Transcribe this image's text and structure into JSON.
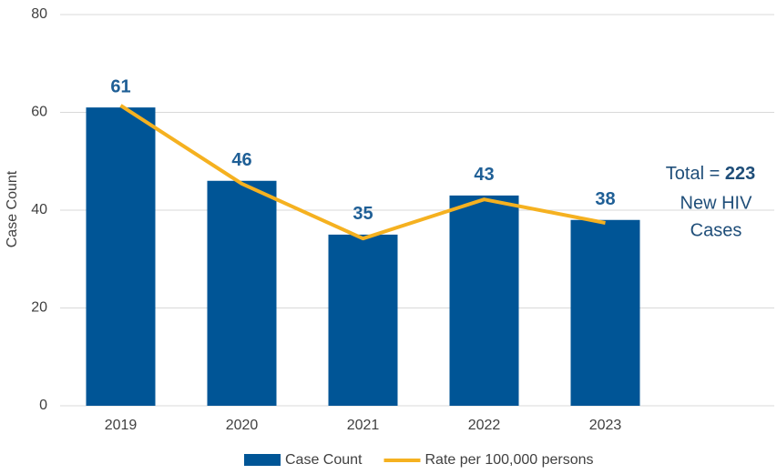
{
  "chart_data": {
    "type": "bar",
    "y_label": "Case Count",
    "categories": [
      "2019",
      "2020",
      "2021",
      "2022",
      "2023"
    ],
    "series": [
      {
        "name": "Case Count",
        "type": "bar",
        "color": "#005596",
        "values": [
          61,
          46,
          35,
          43,
          38
        ]
      },
      {
        "name": "Rate per 100,000 persons",
        "type": "line",
        "color": "#f5b120",
        "values": [
          61.4,
          45.4,
          34.2,
          42.2,
          37.4
        ]
      }
    ],
    "ylim": [
      0,
      80
    ],
    "yticks": [
      0,
      20,
      40,
      60,
      80
    ],
    "grid": true,
    "annotation": {
      "prefix": "Total =",
      "total": "223",
      "lines": [
        "New HIV",
        "Cases"
      ]
    },
    "legend": "bottom"
  }
}
